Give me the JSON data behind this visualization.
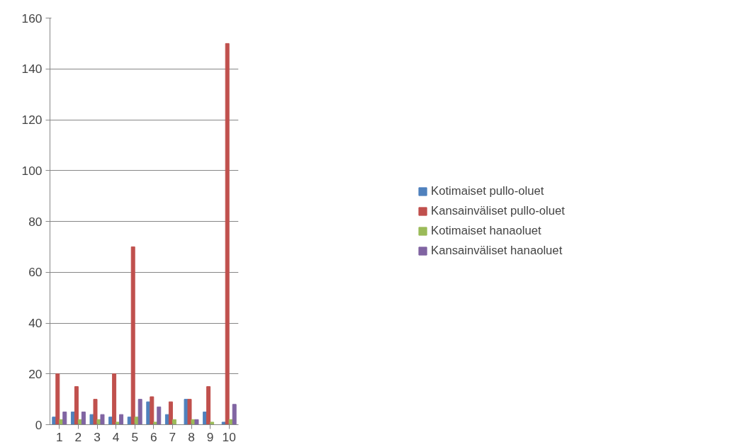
{
  "chart_data": {
    "type": "bar",
    "categories": [
      "1",
      "2",
      "3",
      "4",
      "5",
      "6",
      "7",
      "8",
      "9",
      "10"
    ],
    "series": [
      {
        "name": "Kotimaiset pullo-oluet",
        "color": "#4f81bd",
        "values": [
          3,
          5,
          4,
          3,
          3,
          9,
          4,
          10,
          5,
          1
        ]
      },
      {
        "name": "Kansainväliset pullo-oluet",
        "color": "#c0504d",
        "values": [
          20,
          15,
          10,
          20,
          70,
          11,
          9,
          10,
          15,
          150
        ]
      },
      {
        "name": "Kotimaiset hanaoluet",
        "color": "#9bbb59",
        "values": [
          2,
          2,
          2,
          1,
          3,
          1,
          2,
          2,
          1,
          2
        ]
      },
      {
        "name": "Kansainväliset hanaoluet",
        "color": "#8064a2",
        "values": [
          5,
          5,
          4,
          4,
          10,
          7,
          0,
          2,
          0,
          8
        ]
      }
    ],
    "ylim": [
      0,
      160
    ],
    "yticks": [
      0,
      20,
      40,
      60,
      80,
      100,
      120,
      140,
      160
    ],
    "grid": "y",
    "legend": "right"
  }
}
